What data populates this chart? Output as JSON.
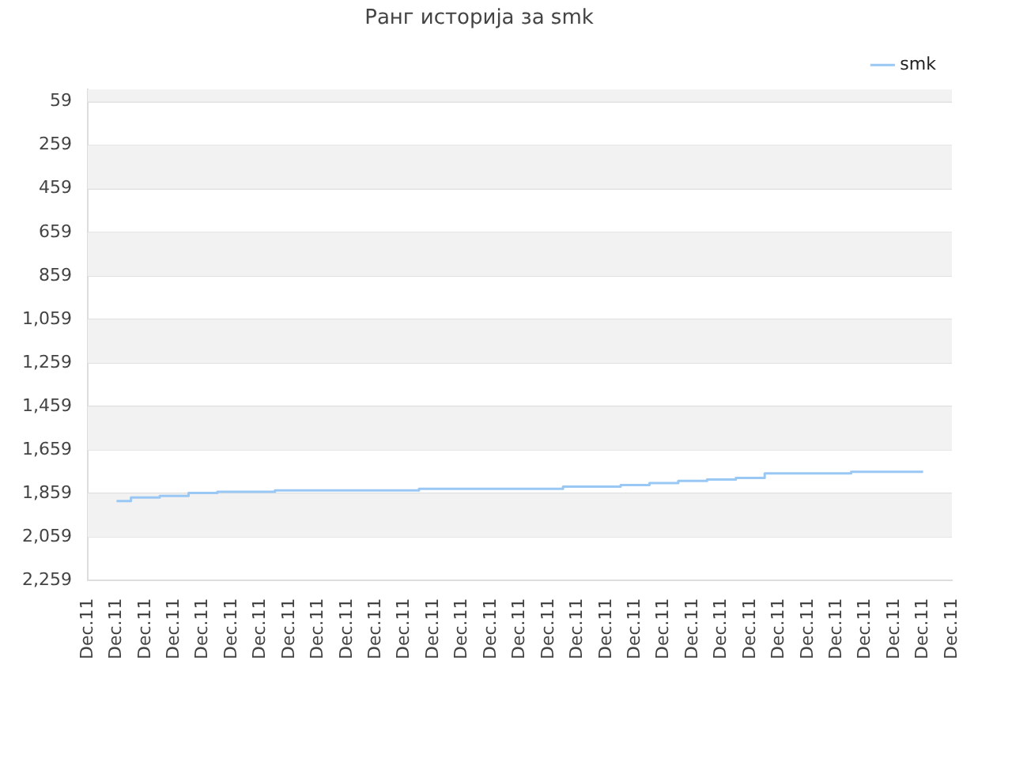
{
  "chart_data": {
    "type": "step",
    "title": "Ранг историја за smk",
    "categories": [
      "Dec.11",
      "Dec.11",
      "Dec.11",
      "Dec.11",
      "Dec.11",
      "Dec.11",
      "Dec.11",
      "Dec.11",
      "Dec.11",
      "Dec.11",
      "Dec.11",
      "Dec.11",
      "Dec.11",
      "Dec.11",
      "Dec.11",
      "Dec.11",
      "Dec.11",
      "Dec.11",
      "Dec.11",
      "Dec.11",
      "Dec.11",
      "Dec.11",
      "Dec.11",
      "Dec.11",
      "Dec.11",
      "Dec.11",
      "Dec.11",
      "Dec.11",
      "Dec.11",
      "Dec.11",
      "Dec.11"
    ],
    "series": [
      {
        "name": "smk",
        "color": "#99c8f5",
        "values": [
          null,
          1893,
          1877,
          1870,
          1856,
          1851,
          1851,
          1844,
          1844,
          1844,
          1844,
          1844,
          1837,
          1837,
          1837,
          1837,
          1837,
          1827,
          1827,
          1820,
          1811,
          1801,
          1794,
          1787,
          1766,
          1766,
          1766,
          1759,
          1759,
          1759,
          null
        ]
      }
    ],
    "ylim": [
      2259,
      3
    ],
    "yticks": [
      59,
      259,
      459,
      659,
      859,
      {
        "value": 1059,
        "label": "1,059"
      },
      {
        "value": 1259,
        "label": "1,259"
      },
      {
        "value": 1459,
        "label": "1,459"
      },
      {
        "value": 1659,
        "label": "1,659"
      },
      {
        "value": 1859,
        "label": "1,859"
      },
      {
        "value": 2059,
        "label": "2,059"
      },
      {
        "value": 2259,
        "label": "2,259"
      }
    ],
    "grid": "y",
    "legend": "top right",
    "marker": "none",
    "line_style": "solid"
  }
}
